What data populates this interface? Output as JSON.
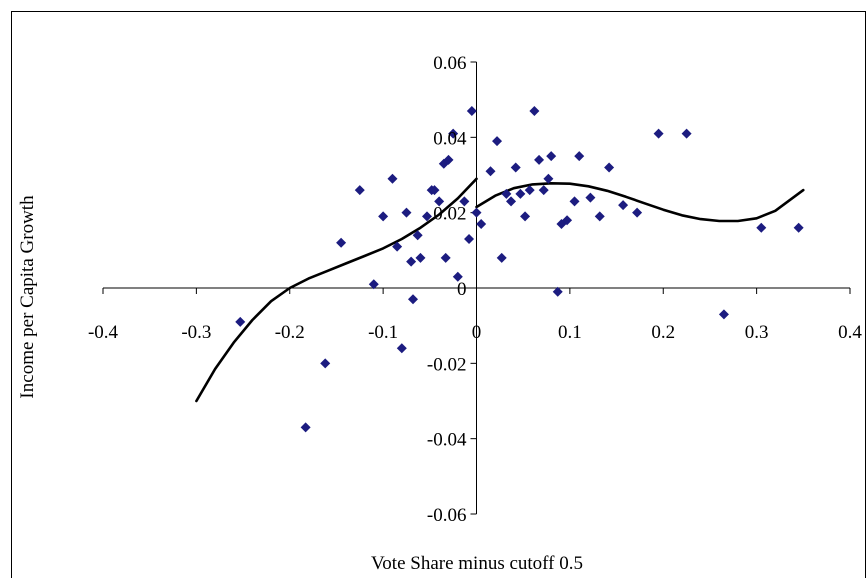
{
  "chart_data": {
    "type": "scatter",
    "xlabel": "Vote Share minus cutoff 0.5",
    "ylabel": "Income per Capita Growth",
    "xlim": [
      -0.4,
      0.4
    ],
    "ylim": [
      -0.06,
      0.06
    ],
    "x_ticks": [
      -0.4,
      -0.3,
      -0.2,
      -0.1,
      0,
      0.1,
      0.2,
      0.3,
      0.4
    ],
    "y_ticks": [
      -0.06,
      -0.04,
      -0.02,
      0,
      0.02,
      0.04,
      0.06
    ],
    "x_tick_labels": [
      "-0.4",
      "-0.3",
      "-0.2",
      "-0.1",
      "0",
      "0.1",
      "0.2",
      "0.3",
      "0.4"
    ],
    "y_tick_labels": [
      "-0.06",
      "-0.04",
      "-0.02",
      "0",
      "0.02",
      "0.04",
      "0.06"
    ],
    "grid": false,
    "legend": "none",
    "colors": {
      "points": "#1c1c80",
      "fit_line": "#000000",
      "axes": "#000000"
    },
    "series": [
      {
        "type": "scatter",
        "marker": "diamond",
        "x": [
          -0.253,
          -0.183,
          -0.162,
          -0.145,
          -0.125,
          -0.11,
          -0.1,
          -0.09,
          -0.085,
          -0.08,
          -0.075,
          -0.07,
          -0.068,
          -0.063,
          -0.06,
          -0.053,
          -0.048,
          -0.045,
          -0.04,
          -0.035,
          -0.033,
          -0.03,
          -0.025,
          -0.02,
          -0.013,
          -0.008,
          -0.005,
          0,
          0.005,
          0.015,
          0.022,
          0.027,
          0.032,
          0.037,
          0.042,
          0.047,
          0.052,
          0.057,
          0.062,
          0.067,
          0.072,
          0.077,
          0.08,
          0.087,
          0.091,
          0.097,
          0.105,
          0.11,
          0.122,
          0.132,
          0.142,
          0.157,
          0.172,
          0.195,
          0.225,
          0.265,
          0.305,
          0.345
        ],
        "y": [
          -0.009,
          -0.037,
          -0.02,
          0.012,
          0.026,
          0.001,
          0.019,
          0.029,
          0.011,
          -0.016,
          0.02,
          0.007,
          -0.003,
          0.014,
          0.008,
          0.019,
          0.026,
          0.026,
          0.023,
          0.033,
          0.008,
          0.034,
          0.041,
          0.003,
          0.023,
          0.013,
          0.047,
          0.02,
          0.017,
          0.031,
          0.039,
          0.008,
          0.025,
          0.023,
          0.032,
          0.025,
          0.019,
          0.026,
          0.047,
          0.034,
          0.026,
          0.029,
          0.035,
          -0.001,
          0.017,
          0.018,
          0.023,
          0.035,
          0.024,
          0.019,
          0.032,
          0.022,
          0.02,
          0.041,
          0.041,
          -0.007,
          0.016,
          0.016
        ]
      },
      {
        "type": "line",
        "x": [
          -0.3,
          -0.28,
          -0.26,
          -0.24,
          -0.22,
          -0.2,
          -0.18,
          -0.16,
          -0.14,
          -0.12,
          -0.1,
          -0.08,
          -0.06,
          -0.04,
          -0.02,
          0
        ],
        "y": [
          -0.03,
          -0.0215,
          -0.0145,
          -0.0085,
          -0.0035,
          0.0,
          0.0025,
          0.0045,
          0.0065,
          0.0085,
          0.0105,
          0.013,
          0.016,
          0.0195,
          0.0238,
          0.029
        ]
      },
      {
        "type": "line",
        "x": [
          0,
          0.02,
          0.04,
          0.06,
          0.08,
          0.1,
          0.12,
          0.14,
          0.16,
          0.18,
          0.2,
          0.22,
          0.24,
          0.26,
          0.28,
          0.3,
          0.32,
          0.35
        ],
        "y": [
          0.0215,
          0.0245,
          0.0265,
          0.0275,
          0.0278,
          0.0277,
          0.027,
          0.0258,
          0.0242,
          0.0225,
          0.0208,
          0.0193,
          0.0183,
          0.0178,
          0.0178,
          0.0185,
          0.0205,
          0.026
        ]
      }
    ]
  }
}
